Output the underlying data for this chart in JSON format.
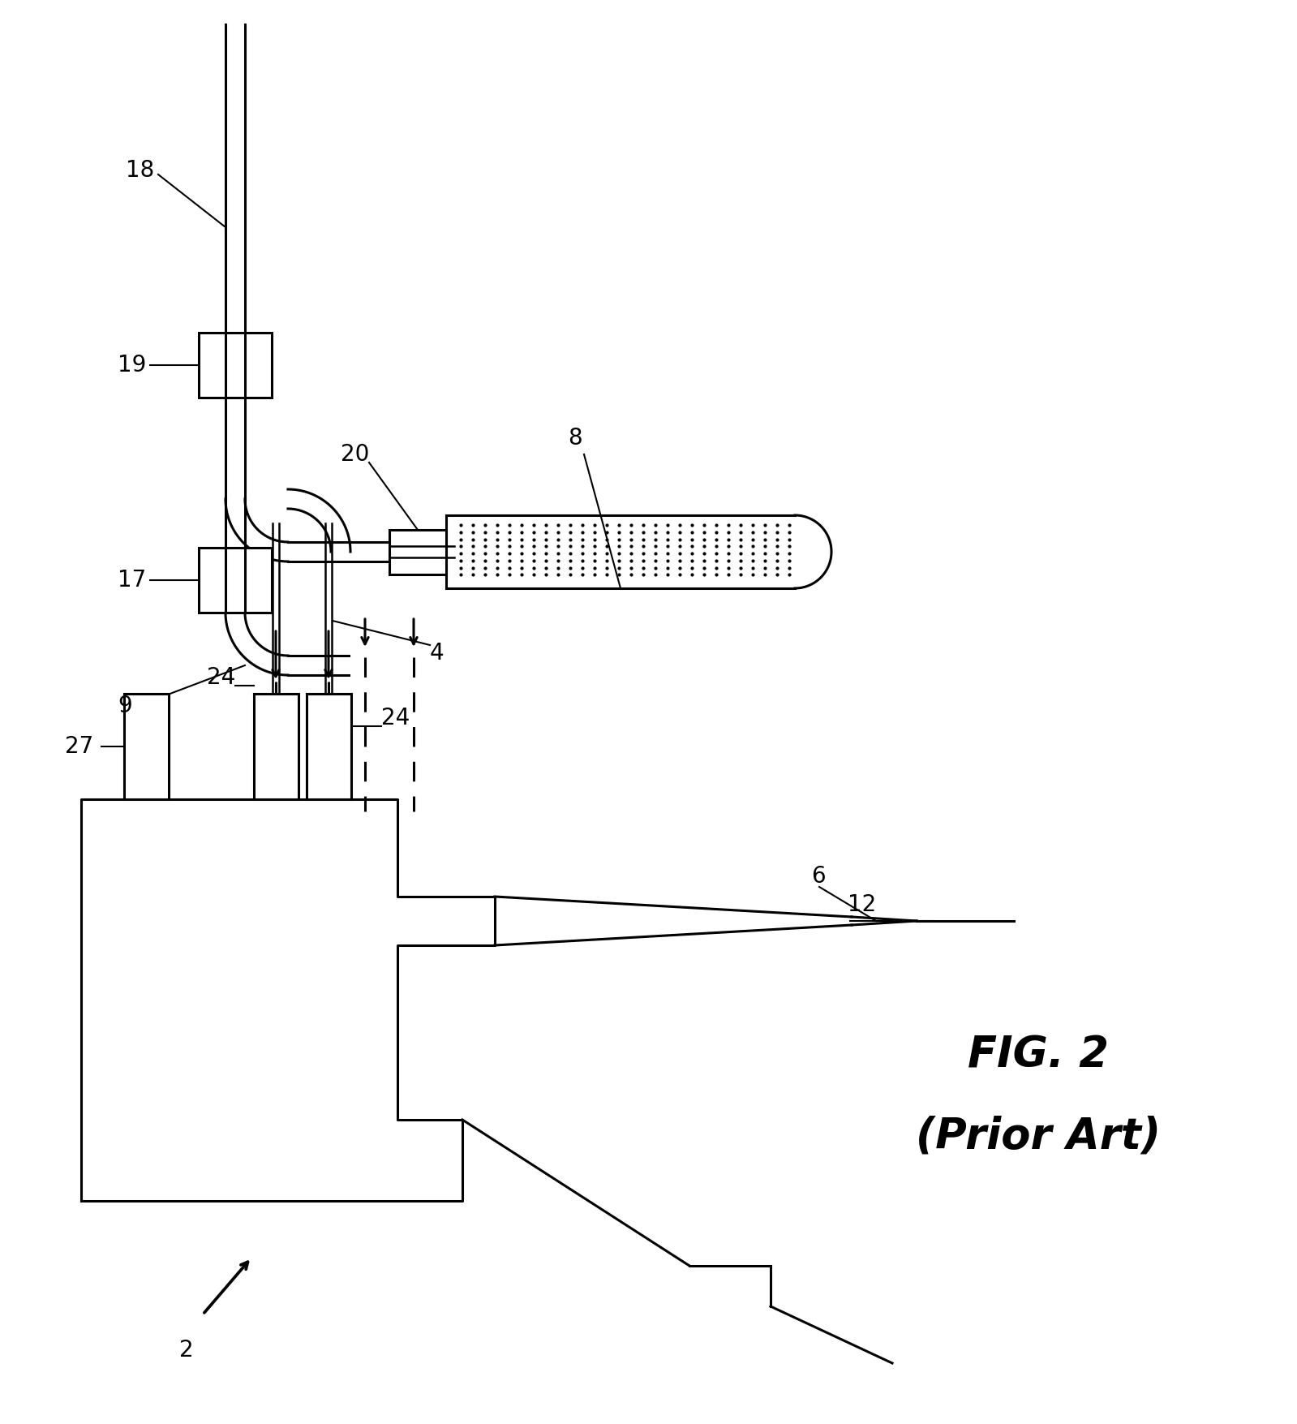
{
  "title_line1": "FIG. 2",
  "title_line2": "(Prior Art)",
  "title_fontsize": 38,
  "bg_color": "#ffffff",
  "line_color": "#000000",
  "lw": 2.2,
  "label_fontsize": 20
}
